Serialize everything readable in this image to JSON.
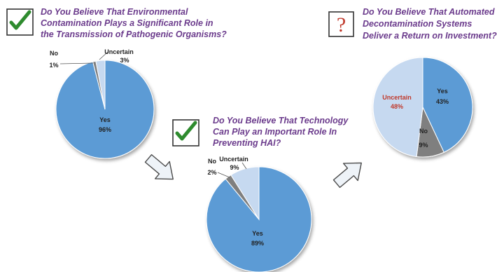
{
  "colors": {
    "yes": "#5b9bd5",
    "no": "#7f7f7f",
    "uncertain": "#c6d9f0",
    "question_text": "#6b3b8c",
    "check": "#2e8b2e",
    "question_mark": "#c0392b",
    "uncertain_label_highlight": "#c0392b"
  },
  "icons": {
    "chart1": "checkmark-icon",
    "chart2": "checkmark-icon",
    "chart3": "question-mark-icon",
    "arrows": [
      "arrow-right-down-icon",
      "arrow-right-up-icon"
    ]
  },
  "question_mark_glyph": "?",
  "chart_data": [
    {
      "type": "pie",
      "title_lines": [
        "Do You Believe That Environmental",
        "Contamination  Plays a Significant Role in",
        "the Transmission of Pathogenic Organisms?"
      ],
      "slices": [
        {
          "label": "Yes",
          "value": 96,
          "value_text": "96%"
        },
        {
          "label": "No",
          "value": 1,
          "value_text": "1%"
        },
        {
          "label": "Uncertain",
          "value": 3,
          "value_text": "3%"
        }
      ]
    },
    {
      "type": "pie",
      "title_lines": [
        "Do You Believe That Technology",
        "Can Play an Important Role In",
        "Preventing HAI?"
      ],
      "slices": [
        {
          "label": "Yes",
          "value": 89,
          "value_text": "89%"
        },
        {
          "label": "No",
          "value": 2,
          "value_text": "2%"
        },
        {
          "label": "Uncertain",
          "value": 9,
          "value_text": "9%"
        }
      ]
    },
    {
      "type": "pie",
      "title_lines": [
        "Do You Believe That Automated",
        "Decontamination  Systems",
        "Deliver a Return on Investment?"
      ],
      "slices": [
        {
          "label": "Yes",
          "value": 43,
          "value_text": "43%"
        },
        {
          "label": "No",
          "value": 9,
          "value_text": "9%"
        },
        {
          "label": "Uncertain",
          "value": 48,
          "value_text": "48%"
        }
      ]
    }
  ]
}
